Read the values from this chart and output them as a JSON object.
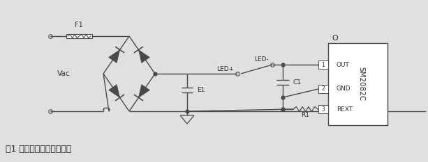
{
  "bg_color": "#e0e0e0",
  "line_color": "#4a4a4a",
  "text_color": "#2a2a2a",
  "caption": "图1 灯丝灯方案的应用原理",
  "caption_fontsize": 9,
  "ic_label": "SM2082C",
  "pin_labels": [
    "OUT",
    "GND",
    "REXT"
  ],
  "pin_numbers": [
    "1",
    "2",
    "3"
  ],
  "figsize": [
    6.13,
    2.33
  ],
  "dpi": 100
}
